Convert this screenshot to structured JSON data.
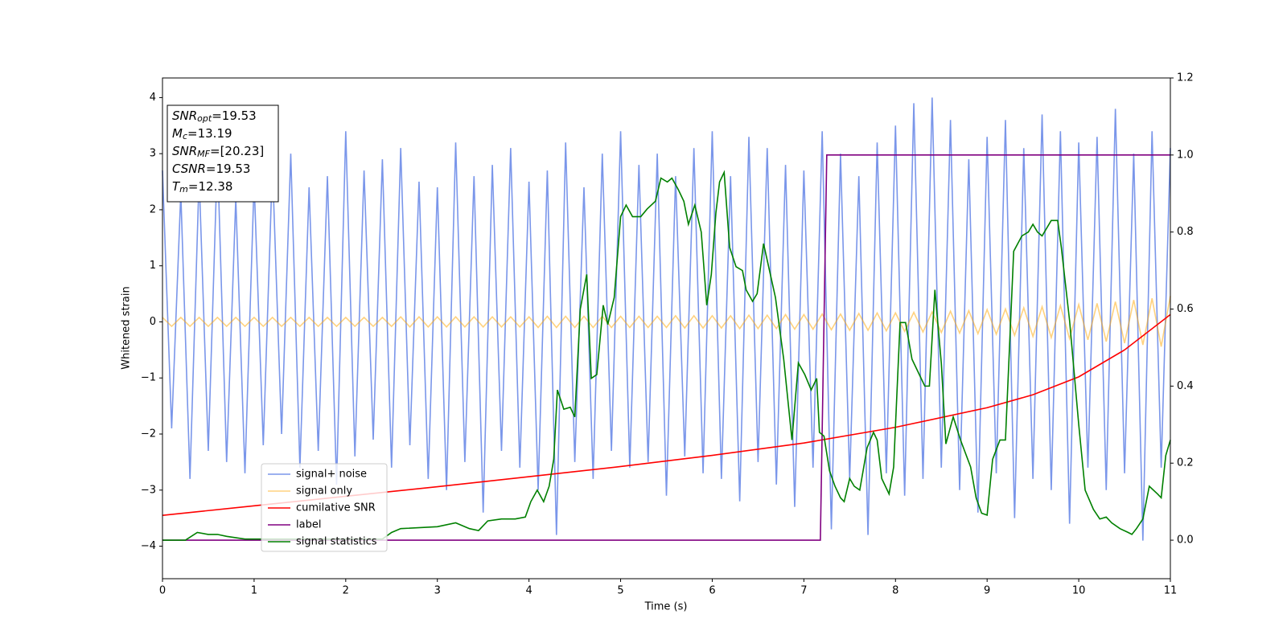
{
  "chart_data": {
    "type": "line",
    "xlabel": "Time (s)",
    "ylabel": "Whitened strain",
    "xlim": [
      0,
      11
    ],
    "ylim": [
      -4.58,
      4.35
    ],
    "y2lim": [
      -0.1,
      1.2
    ],
    "xticks": [
      0,
      1,
      2,
      3,
      4,
      5,
      6,
      7,
      8,
      9,
      10,
      11
    ],
    "yticks": [
      {
        "value": -4,
        "label": "−4"
      },
      {
        "value": -3,
        "label": "−3"
      },
      {
        "value": -2,
        "label": "−2"
      },
      {
        "value": -1,
        "label": "−1"
      },
      0,
      1,
      2,
      3,
      4
    ],
    "y2ticks": [
      {
        "value": 0,
        "label": "0.0"
      },
      0.2,
      0.4,
      0.6,
      0.8,
      {
        "value": 1,
        "label": "1.0"
      },
      {
        "value": 1.2,
        "label": "1.2"
      }
    ],
    "legend": "lower left",
    "annotation": [
      {
        "symbol": "SNR",
        "sub": "opt",
        "text": "=19.53"
      },
      {
        "symbol": "M",
        "sub": "c",
        "text": "=13.19"
      },
      {
        "symbol": "SNR",
        "sub": "MF",
        "text": "=[20.23]"
      },
      {
        "symbol": "CSNR",
        "text": "=19.53"
      },
      {
        "symbol": "T",
        "sub": "m",
        "text": "=12.38"
      }
    ],
    "x": [
      0,
      0.1,
      0.2,
      0.3,
      0.4,
      0.5,
      0.6,
      0.7,
      0.8,
      0.9,
      1,
      1.1,
      1.2,
      1.3,
      1.4,
      1.5,
      1.6,
      1.7,
      1.8,
      1.9,
      2,
      2.1,
      2.2,
      2.3,
      2.4,
      2.5,
      2.6,
      2.7,
      2.8,
      2.9,
      3,
      3.1,
      3.2,
      3.3,
      3.4,
      3.5,
      3.6,
      3.7,
      3.8,
      3.9,
      4,
      4.1,
      4.2,
      4.3,
      4.4,
      4.5,
      4.6,
      4.7,
      4.8,
      4.9,
      5,
      5.1,
      5.2,
      5.3,
      5.4,
      5.5,
      5.6,
      5.7,
      5.8,
      5.9,
      6,
      6.1,
      6.2,
      6.3,
      6.4,
      6.5,
      6.6,
      6.7,
      6.8,
      6.9,
      7,
      7.1,
      7.2,
      7.3,
      7.4,
      7.5,
      7.6,
      7.7,
      7.8,
      7.9,
      8,
      8.1,
      8.2,
      8.3,
      8.4,
      8.5,
      8.6,
      8.7,
      8.8,
      8.9,
      9,
      9.1,
      9.2,
      9.3,
      9.4,
      9.5,
      9.6,
      9.7,
      9.8,
      9.9,
      10,
      10.1,
      10.2,
      10.3,
      10.4,
      10.5,
      10.6,
      10.7,
      10.8,
      10.9,
      11
    ],
    "series": [
      {
        "name": "signal+ noise",
        "color": "#4169e1",
        "alpha": 0.7,
        "values": [
          2.7,
          -1.9,
          2.3,
          -2.8,
          2.6,
          -2.3,
          3.0,
          -2.5,
          2.2,
          -2.7,
          2.5,
          -2.2,
          2.8,
          -2.0,
          3.0,
          -2.6,
          2.4,
          -2.3,
          2.6,
          -2.9,
          3.4,
          -2.4,
          2.7,
          -2.1,
          2.9,
          -2.6,
          3.1,
          -2.2,
          2.5,
          -2.8,
          2.4,
          -3.0,
          3.2,
          -2.5,
          2.6,
          -3.4,
          2.8,
          -2.3,
          3.1,
          -2.6,
          2.5,
          -3.0,
          2.7,
          -3.8,
          3.2,
          -2.5,
          2.4,
          -2.8,
          3.0,
          -2.3,
          3.4,
          -2.6,
          2.8,
          -2.5,
          3.0,
          -3.1,
          2.6,
          -2.4,
          3.1,
          -2.7,
          3.4,
          -2.8,
          2.6,
          -3.2,
          3.3,
          -2.5,
          3.1,
          -2.9,
          2.8,
          -3.3,
          2.7,
          -2.6,
          3.4,
          -3.7,
          3.0,
          -2.8,
          2.6,
          -3.8,
          3.2,
          -2.7,
          3.5,
          -3.1,
          3.9,
          -2.8,
          4.0,
          -2.6,
          3.6,
          -3.0,
          2.9,
          -3.4,
          3.3,
          -2.7,
          3.6,
          -3.5,
          3.1,
          -2.8,
          3.7,
          -3.0,
          3.4,
          -3.6,
          3.2,
          -2.6,
          3.3,
          -3.0,
          3.8,
          -2.7,
          3.0,
          -3.9,
          3.4,
          -2.6,
          3.1
        ]
      },
      {
        "name": "signal only",
        "color": "#ffa500",
        "alpha": 0.5,
        "values": [
          0.08,
          -0.08,
          0.08,
          -0.08,
          0.08,
          -0.08,
          0.08,
          -0.08,
          0.08,
          -0.08,
          0.08,
          -0.08,
          0.08,
          -0.08,
          0.08,
          -0.08,
          0.08,
          -0.08,
          0.08,
          -0.08,
          0.08,
          -0.08,
          0.08,
          -0.08,
          0.08,
          -0.08,
          0.09,
          -0.09,
          0.09,
          -0.09,
          0.09,
          -0.09,
          0.09,
          -0.09,
          0.09,
          -0.09,
          0.09,
          -0.09,
          0.09,
          -0.09,
          0.09,
          -0.1,
          0.1,
          -0.1,
          0.1,
          -0.1,
          0.1,
          -0.1,
          0.1,
          -0.1,
          0.1,
          -0.1,
          0.1,
          -0.1,
          0.1,
          -0.1,
          0.11,
          -0.11,
          0.11,
          -0.11,
          0.11,
          -0.11,
          0.11,
          -0.12,
          0.12,
          -0.12,
          0.12,
          -0.12,
          0.13,
          -0.13,
          0.13,
          -0.13,
          0.14,
          -0.14,
          0.14,
          -0.15,
          0.15,
          -0.15,
          0.16,
          -0.16,
          0.16,
          -0.17,
          0.17,
          -0.18,
          0.18,
          -0.19,
          0.19,
          -0.2,
          0.2,
          -0.21,
          0.22,
          -0.22,
          0.23,
          -0.24,
          0.25,
          -0.26,
          0.27,
          -0.28,
          0.29,
          -0.3,
          0.31,
          -0.32,
          0.33,
          -0.35,
          0.36,
          -0.38,
          0.39,
          -0.41,
          0.42,
          -0.44,
          0.46
        ]
      },
      {
        "name": "cumilative SNR",
        "color": "#ff0000",
        "alpha": 1,
        "x": [
          0,
          1,
          2,
          3,
          4,
          5,
          6,
          7,
          8,
          9,
          9.5,
          10,
          10.5,
          11
        ],
        "values": [
          -3.45,
          -3.28,
          -3.11,
          -2.94,
          -2.76,
          -2.58,
          -2.38,
          -2.16,
          -1.88,
          -1.53,
          -1.3,
          -0.98,
          -0.5,
          0.13
        ]
      },
      {
        "name": "label",
        "color": "#800080",
        "alpha": 1,
        "axis": "y2",
        "x": [
          0,
          7.18,
          7.25,
          11
        ],
        "values": [
          0,
          0,
          1,
          1
        ]
      },
      {
        "name": "signal statistics",
        "color": "#008000",
        "alpha": 1,
        "axis": "y2",
        "x": [
          0,
          0.25,
          0.38,
          0.5,
          0.6,
          0.7,
          0.9,
          1.0,
          2.4,
          2.5,
          2.6,
          3.0,
          3.2,
          3.35,
          3.45,
          3.55,
          3.7,
          3.85,
          3.96,
          4.02,
          4.09,
          4.16,
          4.22,
          4.27,
          4.31,
          4.38,
          4.45,
          4.5,
          4.56,
          4.63,
          4.68,
          4.74,
          4.81,
          4.86,
          4.93,
          5.0,
          5.06,
          5.13,
          5.22,
          5.29,
          5.38,
          5.44,
          5.51,
          5.56,
          5.63,
          5.69,
          5.74,
          5.81,
          5.88,
          5.94,
          5.99,
          6.04,
          6.08,
          6.13,
          6.19,
          6.26,
          6.33,
          6.37,
          6.44,
          6.49,
          6.56,
          6.69,
          6.78,
          6.87,
          6.94,
          7.01,
          7.08,
          7.14,
          7.17,
          7.22,
          7.28,
          7.34,
          7.4,
          7.44,
          7.5,
          7.55,
          7.61,
          7.69,
          7.76,
          7.8,
          7.85,
          7.93,
          7.98,
          8.05,
          8.11,
          8.18,
          8.26,
          8.32,
          8.37,
          8.43,
          8.5,
          8.55,
          8.63,
          8.71,
          8.82,
          8.88,
          8.94,
          9.0,
          9.06,
          9.14,
          9.2,
          9.29,
          9.38,
          9.45,
          9.5,
          9.55,
          9.6,
          9.7,
          9.77,
          9.81,
          9.9,
          10.0,
          10.07,
          10.16,
          10.23,
          10.3,
          10.36,
          10.45,
          10.54,
          10.58,
          10.63,
          10.7,
          10.77,
          10.86,
          10.9,
          10.95,
          11
        ],
        "values": [
          0,
          0,
          0.02,
          0.015,
          0.015,
          0.01,
          0.003,
          0.003,
          0.003,
          0.02,
          0.03,
          0.035,
          0.045,
          0.03,
          0.025,
          0.05,
          0.055,
          0.055,
          0.06,
          0.1,
          0.13,
          0.1,
          0.14,
          0.21,
          0.39,
          0.34,
          0.345,
          0.32,
          0.6,
          0.69,
          0.42,
          0.43,
          0.61,
          0.56,
          0.63,
          0.84,
          0.87,
          0.84,
          0.84,
          0.86,
          0.88,
          0.94,
          0.93,
          0.94,
          0.91,
          0.88,
          0.82,
          0.87,
          0.8,
          0.61,
          0.69,
          0.85,
          0.93,
          0.955,
          0.76,
          0.71,
          0.7,
          0.65,
          0.62,
          0.64,
          0.77,
          0.63,
          0.47,
          0.26,
          0.46,
          0.43,
          0.39,
          0.42,
          0.28,
          0.27,
          0.18,
          0.14,
          0.11,
          0.1,
          0.16,
          0.14,
          0.13,
          0.24,
          0.28,
          0.26,
          0.16,
          0.12,
          0.19,
          0.565,
          0.565,
          0.47,
          0.43,
          0.4,
          0.4,
          0.65,
          0.46,
          0.25,
          0.32,
          0.26,
          0.19,
          0.11,
          0.07,
          0.065,
          0.21,
          0.26,
          0.26,
          0.75,
          0.79,
          0.8,
          0.82,
          0.8,
          0.79,
          0.83,
          0.83,
          0.76,
          0.57,
          0.3,
          0.13,
          0.08,
          0.055,
          0.06,
          0.045,
          0.03,
          0.02,
          0.015,
          0.03,
          0.055,
          0.14,
          0.12,
          0.11,
          0.22,
          0.26
        ]
      }
    ]
  }
}
